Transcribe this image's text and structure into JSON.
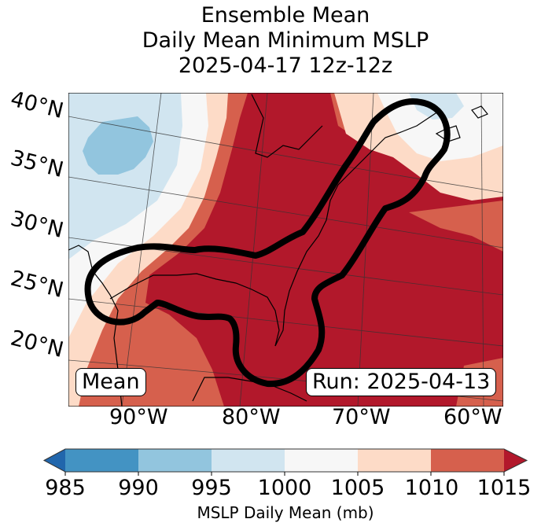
{
  "title": {
    "line1": "Ensemble Mean",
    "line2": "Daily Mean Minimum MSLP",
    "line3": "2025-04-17 12z-12z"
  },
  "map": {
    "lat_labels": [
      "40°N",
      "35°N",
      "30°N",
      "25°N",
      "20°N"
    ],
    "lon_labels": [
      "90°W",
      "80°W",
      "70°W",
      "60°W"
    ],
    "badge_left": "Mean",
    "badge_right": "Run: 2025-04-13",
    "contour_color": "#000000",
    "regions": [
      {
        "level": "990-995",
        "color": "#92c5de"
      },
      {
        "level": "995-1000",
        "color": "#d1e5f0"
      },
      {
        "level": "1000-1005",
        "color": "#f7f7f7"
      },
      {
        "level": "1005-1010",
        "color": "#fddbc7"
      },
      {
        "level": "1010-1015",
        "color": "#d6604d"
      },
      {
        "level": ">1015",
        "color": "#b2182b"
      }
    ]
  },
  "colorbar": {
    "label": "MSLP Daily Mean (mb)",
    "ticks": [
      "985",
      "990",
      "995",
      "1000",
      "1005",
      "1010",
      "1015"
    ],
    "under_color": "#2166ac",
    "over_color": "#b2182b",
    "bins": [
      {
        "range": "985-990",
        "color": "#4393c3"
      },
      {
        "range": "990-995",
        "color": "#92c5de"
      },
      {
        "range": "995-1000",
        "color": "#d1e5f0"
      },
      {
        "range": "1000-1005",
        "color": "#f7f7f7"
      },
      {
        "range": "1005-1010",
        "color": "#fddbc7"
      },
      {
        "range": "1010-1015",
        "color": "#d6604d"
      }
    ]
  }
}
